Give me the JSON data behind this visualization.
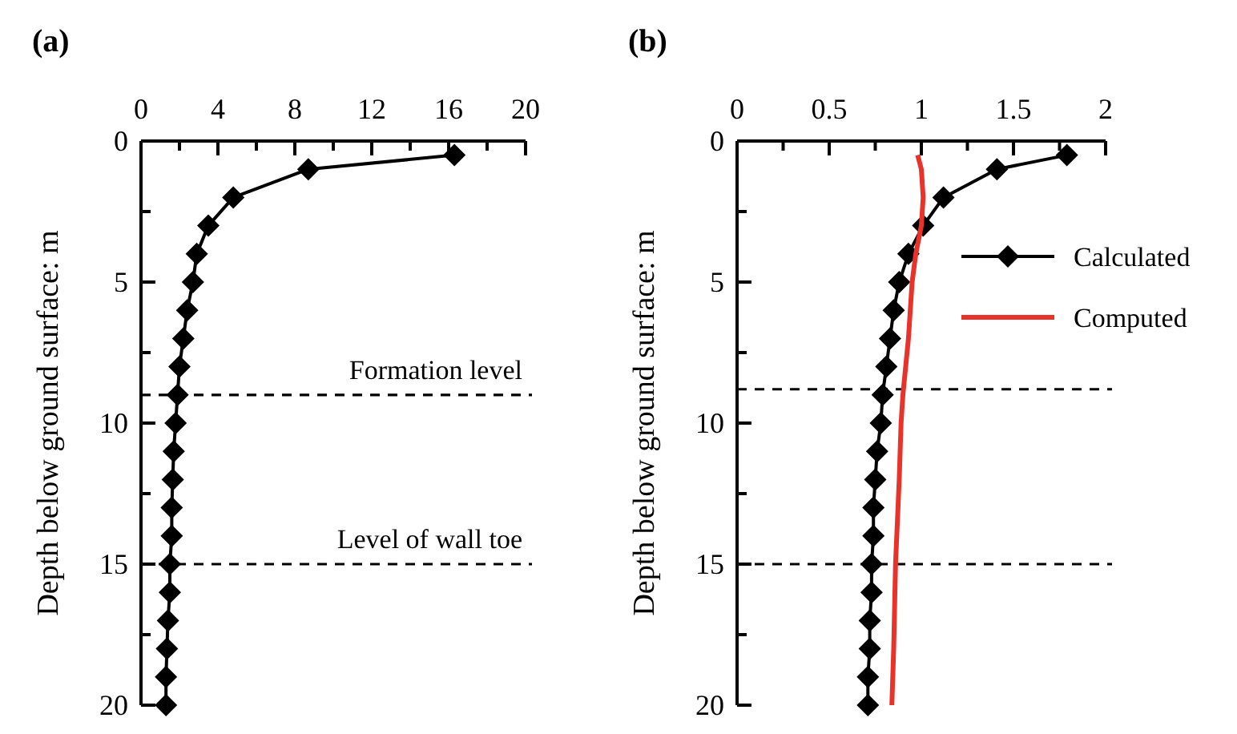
{
  "chart_data": [
    {
      "type": "line",
      "title": "(a)",
      "ylabel": "Depth below ground surface: m",
      "marker": "diamond",
      "legend": false,
      "xlim": [
        0,
        20
      ],
      "xticks": [
        0,
        {
          "value": 2,
          "label": null
        },
        4,
        {
          "value": 6,
          "label": null
        },
        8,
        {
          "value": 10,
          "label": null
        },
        12,
        {
          "value": 14,
          "label": null
        },
        16,
        {
          "value": 18,
          "label": null
        },
        20
      ],
      "ylim": [
        20,
        0
      ],
      "yticks": [
        0,
        {
          "value": 2.5,
          "label": null
        },
        5,
        {
          "value": 7.5,
          "label": null
        },
        10,
        {
          "value": 12.5,
          "label": null
        },
        15,
        {
          "value": 17.5,
          "label": null
        },
        20
      ],
      "series": [
        {
          "color": "#000000",
          "x": [
            16.3,
            8.7,
            4.8,
            3.5,
            2.9,
            2.7,
            2.4,
            2.2,
            2.0,
            1.9,
            1.8,
            1.7,
            1.65,
            1.6,
            1.6,
            1.5,
            1.5,
            1.4,
            1.35,
            1.3,
            1.3
          ],
          "values": [
            0.5,
            1,
            2,
            3,
            4,
            5,
            6,
            7,
            8,
            9,
            10,
            11,
            12,
            13,
            14,
            15,
            16,
            17,
            18,
            19,
            20
          ]
        }
      ],
      "ref_lines": [
        {
          "axis": "y",
          "value": 9,
          "label": "Formation level",
          "line_style": "dashed"
        },
        {
          "axis": "y",
          "value": 15,
          "label": "Level of wall toe",
          "line_style": "dashed"
        }
      ]
    },
    {
      "type": "line",
      "title": "(b)",
      "ylabel": "Depth below ground surface: m",
      "marker": "diamond",
      "legend": "top right",
      "xlim": [
        0,
        2
      ],
      "xticks": [
        0,
        {
          "value": 0.25,
          "label": null
        },
        0.5,
        {
          "value": 0.75,
          "label": null
        },
        1,
        {
          "value": 1.25,
          "label": null
        },
        1.5,
        {
          "value": 1.75,
          "label": null
        },
        2
      ],
      "ylim": [
        20,
        0
      ],
      "yticks": [
        0,
        {
          "value": 2.5,
          "label": null
        },
        5,
        {
          "value": 7.5,
          "label": null
        },
        10,
        {
          "value": 12.5,
          "label": null
        },
        15,
        {
          "value": 17.5,
          "label": null
        },
        20
      ],
      "series": [
        {
          "name": "Calculated",
          "color": "#000000",
          "x": [
            1.79,
            1.41,
            1.12,
            1.01,
            0.93,
            0.88,
            0.85,
            0.83,
            0.81,
            0.79,
            0.78,
            0.76,
            0.75,
            0.74,
            0.74,
            0.73,
            0.73,
            0.72,
            0.72,
            0.71,
            0.71
          ],
          "values": [
            0.5,
            1,
            2,
            3,
            4,
            5,
            6,
            7,
            8,
            9,
            10,
            11,
            12,
            13,
            14,
            15,
            16,
            17,
            18,
            19,
            20
          ]
        },
        {
          "name": "Computed",
          "color": "#e8332a",
          "marker": "none",
          "x": [
            0.98,
            1.0,
            1.01,
            1.0,
            0.97,
            0.95,
            0.93,
            0.9,
            0.89,
            0.88,
            0.86,
            0.85,
            0.84
          ],
          "values": [
            0.5,
            1,
            2,
            3,
            4,
            5,
            7,
            9,
            10,
            12,
            15,
            18,
            20
          ]
        }
      ],
      "ref_lines": [
        {
          "axis": "y",
          "value": 8.8,
          "line_style": "dashed"
        },
        {
          "axis": "y",
          "value": 15,
          "line_style": "dashed"
        }
      ]
    }
  ]
}
